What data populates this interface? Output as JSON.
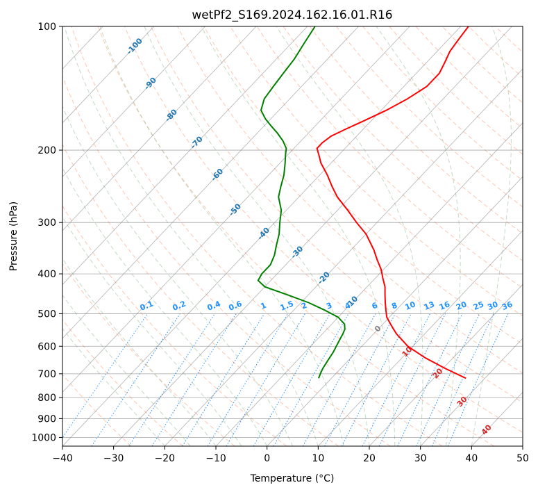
{
  "chart_data": {
    "type": "line",
    "title": "wetPf2_S169.2024.162.16.01.R16",
    "xlabel": "Temperature (°C)",
    "ylabel": "Pressure (hPa)",
    "xlim": [
      -40,
      50
    ],
    "ylim": [
      1050,
      100
    ],
    "y_scale": "log",
    "x_ticks": [
      "−40",
      "−30",
      "−20",
      "−10",
      "0",
      "10",
      "20",
      "30",
      "40",
      "50"
    ],
    "y_ticks": [
      "100",
      "200",
      "300",
      "400",
      "500",
      "600",
      "700",
      "800",
      "900",
      "1000"
    ],
    "grid": true,
    "skew": "skew-T log-p",
    "colors": {
      "temperature": "#ff0000",
      "dewpoint": "#008000",
      "dry_adiabat": "#ffa07a",
      "moist_adiabat": "#8fbc8f",
      "mixing_ratio": "#1e90ff",
      "isotherm": "#808080",
      "isotherm_label_negative": "#1f77b4",
      "isotherm_label_positive": "#d62728"
    },
    "series": [
      {
        "key": "temperature",
        "pressure": [
          718,
          680,
          640,
          600,
          560,
          540,
          530,
          510,
          490,
          470,
          450,
          430,
          410,
          390,
          370,
          350,
          320,
          300,
          280,
          260,
          245,
          230,
          215,
          205,
          198,
          192,
          185,
          178,
          170,
          160,
          150,
          140,
          130,
          122,
          115,
          108,
          100
        ],
        "values": [
          26.3,
          20.5,
          14.5,
          9,
          4.5,
          2.5,
          1.5,
          -0.5,
          -2,
          -3.5,
          -5,
          -6.5,
          -8.5,
          -10.5,
          -13,
          -15.5,
          -20,
          -24,
          -28,
          -32.5,
          -35.5,
          -38.5,
          -42,
          -44,
          -45.5,
          -45.5,
          -45,
          -43.5,
          -41.5,
          -39,
          -37,
          -35.5,
          -35.5,
          -36.5,
          -37.5,
          -38,
          -38.5
        ]
      },
      {
        "key": "dewpoint",
        "pressure": [
          718,
          700,
          680,
          650,
          620,
          600,
          580,
          560,
          545,
          530,
          510,
          490,
          470,
          450,
          430,
          415,
          400,
          380,
          360,
          340,
          320,
          300,
          280,
          260,
          245,
          230,
          215,
          205,
          198,
          190,
          182,
          175,
          168,
          160,
          150,
          140,
          130,
          120,
          110,
          100
        ],
        "values": [
          -2.5,
          -3,
          -3.5,
          -4,
          -4.5,
          -5,
          -5.5,
          -6,
          -6.5,
          -7.5,
          -10,
          -14,
          -18.5,
          -24,
          -30,
          -32.5,
          -33,
          -33,
          -34,
          -35.5,
          -37,
          -39,
          -41,
          -44,
          -45.5,
          -47,
          -49,
          -50.5,
          -51.5,
          -53.5,
          -56,
          -58.5,
          -61,
          -63.5,
          -65,
          -65.5,
          -66,
          -66.5,
          -67.5,
          -68.5
        ]
      }
    ],
    "isotherm_labels": [
      "-100",
      "-90",
      "-80",
      "-70",
      "-60",
      "-50",
      "-40",
      "-30",
      "-20",
      "-10",
      "0",
      "10",
      "20",
      "30",
      "40"
    ],
    "isotherm_label_values": [
      -100,
      -90,
      -80,
      -70,
      -60,
      -50,
      -40,
      -30,
      -20,
      -10,
      0,
      10,
      20,
      30,
      40
    ],
    "mixing_ratio_labels": [
      "0.1",
      "0.2",
      "0.4",
      "0.6",
      "1",
      "1.5",
      "2",
      "3",
      "4",
      "6",
      "8",
      "10",
      "13",
      "16",
      "20",
      "25",
      "30",
      "36"
    ],
    "mixing_ratio_values": [
      0.1,
      0.2,
      0.4,
      0.6,
      1,
      1.5,
      2,
      3,
      4,
      6,
      8,
      10,
      13,
      16,
      20,
      25,
      30,
      36
    ]
  }
}
